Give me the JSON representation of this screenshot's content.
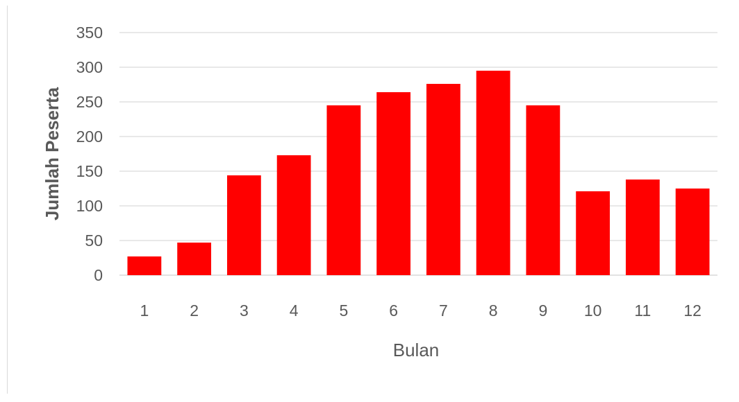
{
  "chart_data": {
    "type": "bar",
    "categories": [
      "1",
      "2",
      "3",
      "4",
      "5",
      "6",
      "7",
      "8",
      "9",
      "10",
      "11",
      "12"
    ],
    "values": [
      27,
      47,
      144,
      173,
      245,
      264,
      276,
      295,
      245,
      121,
      138,
      125
    ],
    "xlabel": "Bulan",
    "ylabel": "Jumlah Peserta",
    "ylim": [
      0,
      350
    ],
    "yticks": [
      "0",
      "50",
      "100",
      "150",
      "200",
      "250",
      "300",
      "350"
    ],
    "bar_color": "#ff0000",
    "grid": true,
    "legend": "none"
  }
}
